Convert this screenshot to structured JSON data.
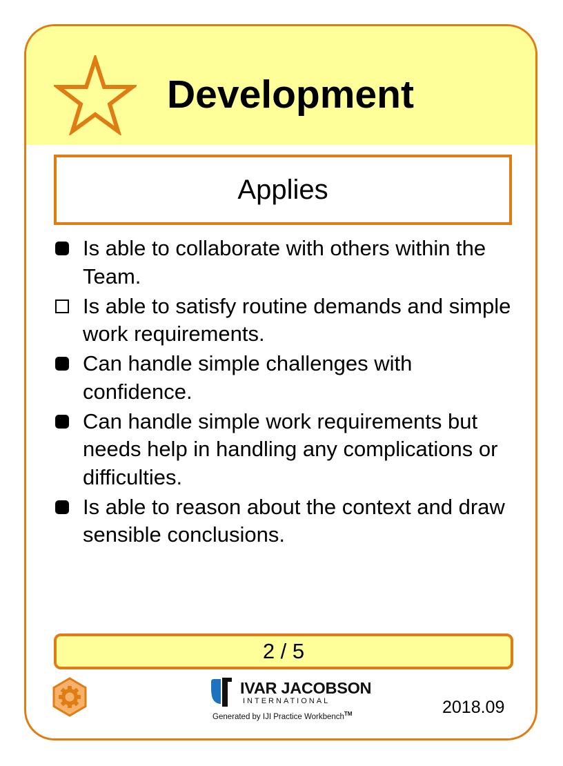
{
  "card": {
    "title": "Development",
    "subtitle": "Applies",
    "colors": {
      "accent": "#e07c14",
      "header_fill": "#ffff99"
    },
    "header_icon": "star-icon",
    "checklist": [
      {
        "text": "Is able to collaborate with others within the Team.",
        "checked": true
      },
      {
        "text": "Is able to satisfy routine demands and simple work requirements.",
        "checked": false
      },
      {
        "text": "Can handle simple challenges with confidence.",
        "checked": true
      },
      {
        "text": "Can handle simple work requirements but needs help in handling any complications or difficulties.",
        "checked": true
      },
      {
        "text": "Is able to reason about the context and draw sensible conclusions.",
        "checked": true
      }
    ],
    "level": "2 / 5",
    "footer_icon": "gear-icon",
    "logo": {
      "name": "IVAR JACOBSON",
      "sub": "INTERNATIONAL",
      "generated_by": "Generated by IJI Practice Workbench",
      "trademark": "TM"
    },
    "version": "2018.09"
  }
}
